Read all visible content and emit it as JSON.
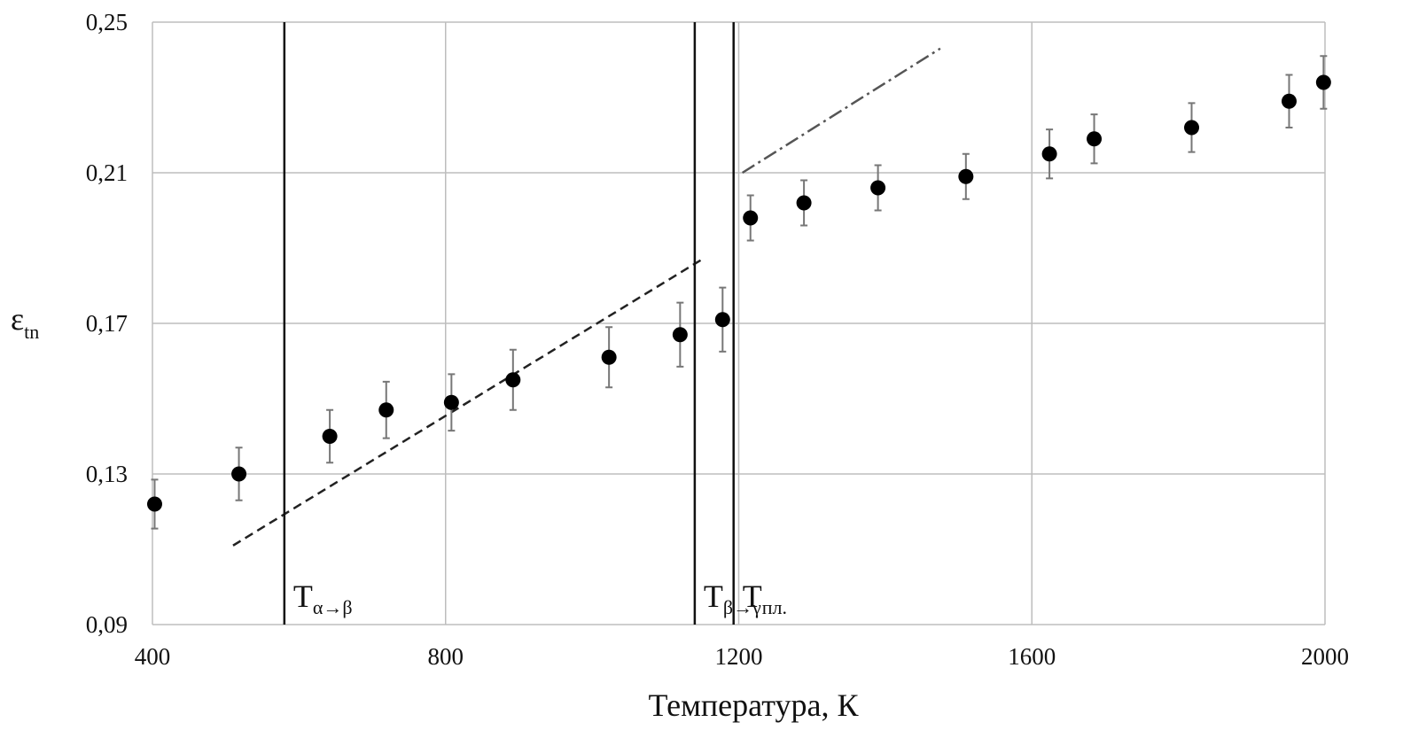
{
  "chart_data": {
    "type": "scatter",
    "xlabel": "Температура, К",
    "ylabel": {
      "main": "ε",
      "sub": "tn"
    },
    "xlim": [
      400,
      2000
    ],
    "ylim": [
      0.09,
      0.25
    ],
    "xticks": [
      400,
      800,
      1200,
      1600,
      2000
    ],
    "xtick_labels": [
      "400",
      "800",
      "1200",
      "1600",
      "2000"
    ],
    "yticks": [
      0.09,
      0.13,
      0.17,
      0.21,
      0.25
    ],
    "ytick_labels": [
      "0,09",
      "0,13",
      "0,17",
      "0,21",
      "0,25"
    ],
    "grid": true,
    "series": [
      {
        "marker": "filled-circle",
        "color": "#000000",
        "points": [
          {
            "x": 403,
            "y": 0.122,
            "err": 0.0065
          },
          {
            "x": 518,
            "y": 0.13,
            "err": 0.007
          },
          {
            "x": 642,
            "y": 0.14,
            "err": 0.007
          },
          {
            "x": 719,
            "y": 0.147,
            "err": 0.0075
          },
          {
            "x": 808,
            "y": 0.149,
            "err": 0.0075
          },
          {
            "x": 892,
            "y": 0.155,
            "err": 0.008
          },
          {
            "x": 1023,
            "y": 0.161,
            "err": 0.008
          },
          {
            "x": 1120,
            "y": 0.167,
            "err": 0.0085
          },
          {
            "x": 1178,
            "y": 0.171,
            "err": 0.0085
          },
          {
            "x": 1216,
            "y": 0.198,
            "err": 0.006
          },
          {
            "x": 1289,
            "y": 0.202,
            "err": 0.006
          },
          {
            "x": 1390,
            "y": 0.206,
            "err": 0.006
          },
          {
            "x": 1510,
            "y": 0.209,
            "err": 0.006
          },
          {
            "x": 1624,
            "y": 0.215,
            "err": 0.0065
          },
          {
            "x": 1685,
            "y": 0.219,
            "err": 0.0065
          },
          {
            "x": 1818,
            "y": 0.222,
            "err": 0.0065
          },
          {
            "x": 1951,
            "y": 0.229,
            "err": 0.007
          },
          {
            "x": 1998,
            "y": 0.234,
            "err": 0.007
          }
        ]
      }
    ],
    "trend_lines": [
      {
        "style": "dashed",
        "x": [
          510,
          1150
        ],
        "y": [
          0.111,
          0.187
        ]
      },
      {
        "style": "dash-dot",
        "x": [
          1205,
          1475
        ],
        "y": [
          0.21,
          0.243
        ]
      }
    ],
    "vertical_lines": [
      {
        "x": 580,
        "label_main": "T",
        "label_sub": "α→β"
      },
      {
        "x": 1140,
        "label_main": "T",
        "label_sub": "β→γ"
      },
      {
        "x": 1193,
        "label_main": "T",
        "label_sub": "пл."
      }
    ]
  }
}
